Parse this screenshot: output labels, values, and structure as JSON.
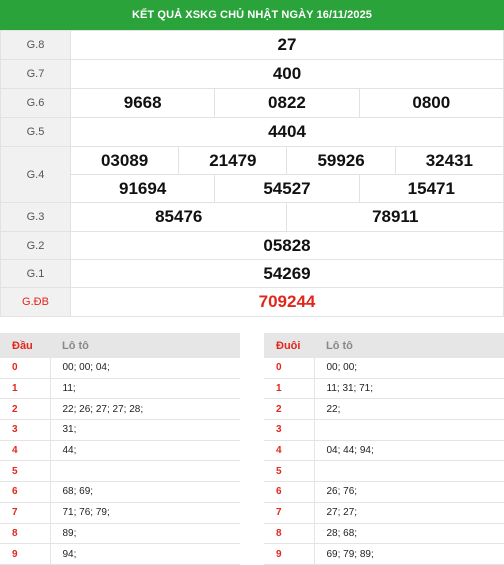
{
  "header": {
    "title": "KẾT QUẢ XSKG CHỦ NHẬT NGÀY 16/11/2025"
  },
  "prizes": {
    "g8": {
      "label": "G.8",
      "numbers": [
        "27"
      ]
    },
    "g7": {
      "label": "G.7",
      "numbers": [
        "400"
      ]
    },
    "g6": {
      "label": "G.6",
      "numbers": [
        "9668",
        "0822",
        "0800"
      ]
    },
    "g5": {
      "label": "G.5",
      "numbers": [
        "4404"
      ]
    },
    "g4": {
      "label": "G.4",
      "numbers": [
        "03089",
        "21479",
        "59926",
        "32431",
        "91694",
        "54527",
        "15471"
      ]
    },
    "g3": {
      "label": "G.3",
      "numbers": [
        "85476",
        "78911"
      ]
    },
    "g2": {
      "label": "G.2",
      "numbers": [
        "05828"
      ]
    },
    "g1": {
      "label": "G.1",
      "numbers": [
        "54269"
      ]
    },
    "gdb": {
      "label": "G.ĐB",
      "numbers": [
        "709244"
      ]
    }
  },
  "dau_table": {
    "col1": "Đầu",
    "col2": "Lô tô",
    "rows": [
      {
        "key": "0",
        "values": "00; 00; 04;"
      },
      {
        "key": "1",
        "values": "11;"
      },
      {
        "key": "2",
        "values": "22; 26; 27; 27; 28;"
      },
      {
        "key": "3",
        "values": "31;"
      },
      {
        "key": "4",
        "values": "44;"
      },
      {
        "key": "5",
        "values": ""
      },
      {
        "key": "6",
        "values": "68; 69;"
      },
      {
        "key": "7",
        "values": "71; 76; 79;"
      },
      {
        "key": "8",
        "values": "89;"
      },
      {
        "key": "9",
        "values": "94;"
      }
    ]
  },
  "duoi_table": {
    "col1": "Đuôi",
    "col2": "Lô tô",
    "rows": [
      {
        "key": "0",
        "values": "00; 00;"
      },
      {
        "key": "1",
        "values": "11; 31; 71;"
      },
      {
        "key": "2",
        "values": "22;"
      },
      {
        "key": "3",
        "values": ""
      },
      {
        "key": "4",
        "values": "04; 44; 94;"
      },
      {
        "key": "5",
        "values": ""
      },
      {
        "key": "6",
        "values": "26; 76;"
      },
      {
        "key": "7",
        "values": "27; 27;"
      },
      {
        "key": "8",
        "values": "28; 68;"
      },
      {
        "key": "9",
        "values": "69; 79; 89;"
      }
    ]
  }
}
